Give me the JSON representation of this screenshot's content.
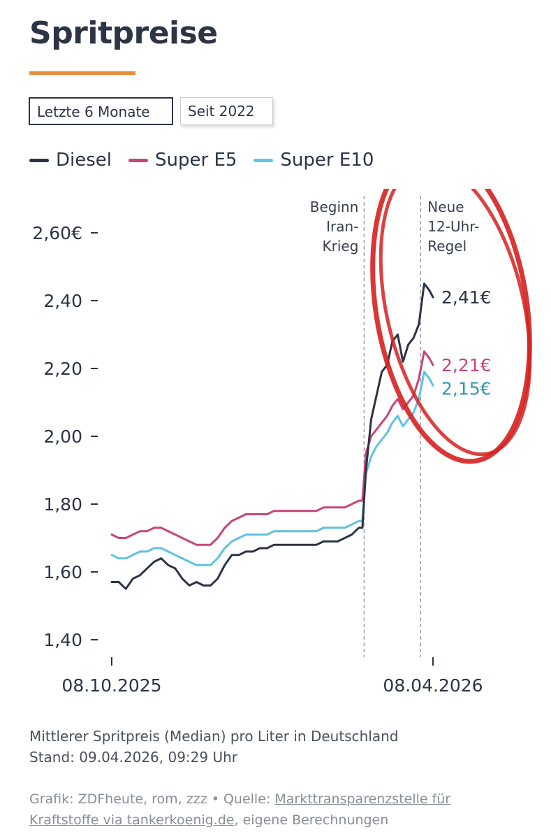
{
  "title": "Spritpreise",
  "tabs": [
    {
      "label": "Letzte 6 Monate",
      "active": true
    },
    {
      "label": "Seit 2022",
      "active": false
    }
  ],
  "colors": {
    "diesel": "#2b3446",
    "e5": "#c8457a",
    "e10": "#5fc2e2",
    "accent": "#ea8a39",
    "highlight_ring": "#d62020"
  },
  "chart_data": {
    "type": "line",
    "x_start": "08.10.2025",
    "x_end": "08.04.2026",
    "x_tick_labels": [
      "08.10.2025",
      "08.04.2026"
    ],
    "y_ticks": [
      "1,40",
      "1,60",
      "1,80",
      "2,00",
      "2,20",
      "2,40",
      "2,60€"
    ],
    "ylim": [
      1.35,
      2.72
    ],
    "annotations": [
      {
        "date": "28.02.2026",
        "label": [
          "Beginn",
          "Iran-",
          "Krieg"
        ]
      },
      {
        "date": "01.04.2026",
        "label": [
          "Neue",
          "12-Uhr-",
          "Regel"
        ]
      }
    ],
    "end_labels": [
      "2,41€",
      "2,21€",
      "2,15€"
    ],
    "series": [
      {
        "name": "Diesel",
        "points": [
          [
            "08.10.2025",
            1.57
          ],
          [
            "12.10.2025",
            1.57
          ],
          [
            "16.10.2025",
            1.55
          ],
          [
            "20.10.2025",
            1.58
          ],
          [
            "24.10.2025",
            1.59
          ],
          [
            "28.10.2025",
            1.61
          ],
          [
            "01.11.2025",
            1.63
          ],
          [
            "05.11.2025",
            1.64
          ],
          [
            "09.11.2025",
            1.62
          ],
          [
            "13.11.2025",
            1.61
          ],
          [
            "17.11.2025",
            1.58
          ],
          [
            "21.11.2025",
            1.56
          ],
          [
            "25.11.2025",
            1.57
          ],
          [
            "29.11.2025",
            1.56
          ],
          [
            "03.12.2025",
            1.56
          ],
          [
            "07.12.2025",
            1.58
          ],
          [
            "11.12.2025",
            1.62
          ],
          [
            "15.12.2025",
            1.65
          ],
          [
            "19.12.2025",
            1.65
          ],
          [
            "23.12.2025",
            1.66
          ],
          [
            "27.12.2025",
            1.66
          ],
          [
            "31.12.2025",
            1.67
          ],
          [
            "04.01.2026",
            1.67
          ],
          [
            "08.01.2026",
            1.68
          ],
          [
            "12.01.2026",
            1.68
          ],
          [
            "16.01.2026",
            1.68
          ],
          [
            "20.01.2026",
            1.68
          ],
          [
            "24.01.2026",
            1.68
          ],
          [
            "28.01.2026",
            1.68
          ],
          [
            "01.02.2026",
            1.68
          ],
          [
            "05.02.2026",
            1.69
          ],
          [
            "09.02.2026",
            1.69
          ],
          [
            "13.02.2026",
            1.69
          ],
          [
            "17.02.2026",
            1.7
          ],
          [
            "21.02.2026",
            1.71
          ],
          [
            "25.02.2026",
            1.73
          ],
          [
            "27.02.2026",
            1.73
          ],
          [
            "01.03.2026",
            1.9
          ],
          [
            "04.03.2026",
            2.05
          ],
          [
            "07.03.2026",
            2.12
          ],
          [
            "10.03.2026",
            2.19
          ],
          [
            "13.03.2026",
            2.21
          ],
          [
            "16.03.2026",
            2.28
          ],
          [
            "19.03.2026",
            2.3
          ],
          [
            "22.03.2026",
            2.22
          ],
          [
            "25.03.2026",
            2.27
          ],
          [
            "28.03.2026",
            2.29
          ],
          [
            "31.03.2026",
            2.33
          ],
          [
            "03.04.2026",
            2.45
          ],
          [
            "06.04.2026",
            2.43
          ],
          [
            "08.04.2026",
            2.41
          ]
        ]
      },
      {
        "name": "Super E5",
        "points": [
          [
            "08.10.2025",
            1.71
          ],
          [
            "12.10.2025",
            1.7
          ],
          [
            "16.10.2025",
            1.7
          ],
          [
            "20.10.2025",
            1.71
          ],
          [
            "24.10.2025",
            1.72
          ],
          [
            "28.10.2025",
            1.72
          ],
          [
            "01.11.2025",
            1.73
          ],
          [
            "05.11.2025",
            1.73
          ],
          [
            "09.11.2025",
            1.72
          ],
          [
            "13.11.2025",
            1.71
          ],
          [
            "17.11.2025",
            1.7
          ],
          [
            "21.11.2025",
            1.69
          ],
          [
            "25.11.2025",
            1.68
          ],
          [
            "29.11.2025",
            1.68
          ],
          [
            "03.12.2025",
            1.68
          ],
          [
            "07.12.2025",
            1.7
          ],
          [
            "11.12.2025",
            1.73
          ],
          [
            "15.12.2025",
            1.75
          ],
          [
            "19.12.2025",
            1.76
          ],
          [
            "23.12.2025",
            1.77
          ],
          [
            "27.12.2025",
            1.77
          ],
          [
            "31.12.2025",
            1.77
          ],
          [
            "04.01.2026",
            1.77
          ],
          [
            "08.01.2026",
            1.78
          ],
          [
            "12.01.2026",
            1.78
          ],
          [
            "16.01.2026",
            1.78
          ],
          [
            "20.01.2026",
            1.78
          ],
          [
            "24.01.2026",
            1.78
          ],
          [
            "28.01.2026",
            1.78
          ],
          [
            "01.02.2026",
            1.78
          ],
          [
            "05.02.2026",
            1.79
          ],
          [
            "09.02.2026",
            1.79
          ],
          [
            "13.02.2026",
            1.79
          ],
          [
            "17.02.2026",
            1.79
          ],
          [
            "21.02.2026",
            1.8
          ],
          [
            "25.02.2026",
            1.81
          ],
          [
            "27.02.2026",
            1.81
          ],
          [
            "01.03.2026",
            1.95
          ],
          [
            "04.03.2026",
            2.0
          ],
          [
            "07.03.2026",
            2.02
          ],
          [
            "10.03.2026",
            2.04
          ],
          [
            "13.03.2026",
            2.06
          ],
          [
            "16.03.2026",
            2.09
          ],
          [
            "19.03.2026",
            2.11
          ],
          [
            "22.03.2026",
            2.08
          ],
          [
            "25.03.2026",
            2.1
          ],
          [
            "28.03.2026",
            2.12
          ],
          [
            "31.03.2026",
            2.17
          ],
          [
            "03.04.2026",
            2.25
          ],
          [
            "06.04.2026",
            2.23
          ],
          [
            "08.04.2026",
            2.21
          ]
        ]
      },
      {
        "name": "Super E10",
        "points": [
          [
            "08.10.2025",
            1.65
          ],
          [
            "12.10.2025",
            1.64
          ],
          [
            "16.10.2025",
            1.64
          ],
          [
            "20.10.2025",
            1.65
          ],
          [
            "24.10.2025",
            1.66
          ],
          [
            "28.10.2025",
            1.66
          ],
          [
            "01.11.2025",
            1.67
          ],
          [
            "05.11.2025",
            1.67
          ],
          [
            "09.11.2025",
            1.66
          ],
          [
            "13.11.2025",
            1.65
          ],
          [
            "17.11.2025",
            1.64
          ],
          [
            "21.11.2025",
            1.63
          ],
          [
            "25.11.2025",
            1.62
          ],
          [
            "29.11.2025",
            1.62
          ],
          [
            "03.12.2025",
            1.62
          ],
          [
            "07.12.2025",
            1.64
          ],
          [
            "11.12.2025",
            1.67
          ],
          [
            "15.12.2025",
            1.69
          ],
          [
            "19.12.2025",
            1.7
          ],
          [
            "23.12.2025",
            1.71
          ],
          [
            "27.12.2025",
            1.71
          ],
          [
            "31.12.2025",
            1.71
          ],
          [
            "04.01.2026",
            1.71
          ],
          [
            "08.01.2026",
            1.72
          ],
          [
            "12.01.2026",
            1.72
          ],
          [
            "16.01.2026",
            1.72
          ],
          [
            "20.01.2026",
            1.72
          ],
          [
            "24.01.2026",
            1.72
          ],
          [
            "28.01.2026",
            1.72
          ],
          [
            "01.02.2026",
            1.72
          ],
          [
            "05.02.2026",
            1.73
          ],
          [
            "09.02.2026",
            1.73
          ],
          [
            "13.02.2026",
            1.73
          ],
          [
            "17.02.2026",
            1.73
          ],
          [
            "21.02.2026",
            1.74
          ],
          [
            "25.02.2026",
            1.75
          ],
          [
            "27.02.2026",
            1.75
          ],
          [
            "01.03.2026",
            1.89
          ],
          [
            "04.03.2026",
            1.94
          ],
          [
            "07.03.2026",
            1.97
          ],
          [
            "10.03.2026",
            1.99
          ],
          [
            "13.03.2026",
            2.01
          ],
          [
            "16.03.2026",
            2.04
          ],
          [
            "19.03.2026",
            2.06
          ],
          [
            "22.03.2026",
            2.03
          ],
          [
            "25.03.2026",
            2.05
          ],
          [
            "28.03.2026",
            2.07
          ],
          [
            "31.03.2026",
            2.11
          ],
          [
            "03.04.2026",
            2.19
          ],
          [
            "06.04.2026",
            2.17
          ],
          [
            "08.04.2026",
            2.15
          ]
        ]
      }
    ]
  },
  "notes": {
    "line1": "Mittlerer Spritpreis (Median) pro Liter in Deutschland",
    "line2": "Stand: 09.04.2026, 09:29 Uhr"
  },
  "source": {
    "prefix": "Grafik: ZDFheute, rom, zzz • Quelle: ",
    "link_part1": "Markttransparenzstelle für",
    "link_part2": "Kraftstoffe via tankerkoenig.de",
    "suffix": ", eigene Berechnungen"
  }
}
